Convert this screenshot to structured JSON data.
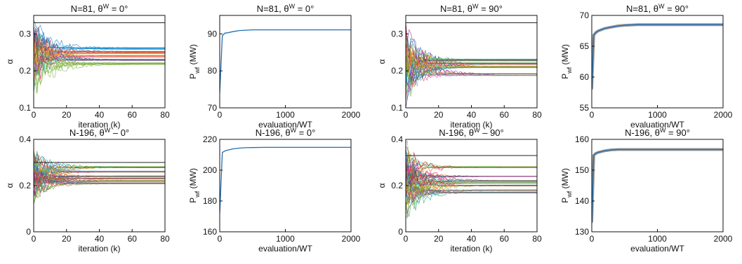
{
  "figure": {
    "rows": 2,
    "cols": 4
  },
  "chart_data": [
    {
      "type": "line",
      "title": "N=81, θ^W = 0°",
      "title_parts": {
        "main": "N=81, θ",
        "sup": "W",
        "tail": " = 0°"
      },
      "xlabel": "iteration (k)",
      "ylabel": "α",
      "ylabel_sub": "",
      "xlim": [
        0,
        80
      ],
      "ylim": [
        0.1,
        0.35
      ],
      "xticks": [
        0,
        20,
        40,
        60,
        80
      ],
      "yticks": [
        0.1,
        0.2,
        0.3
      ],
      "ytick_labels": [
        "0.1",
        "0.2",
        "0.3"
      ],
      "style": "many-traces",
      "upper_bound": 0.33,
      "trace_count": 45,
      "converged_levels": [
        0.26,
        0.25,
        0.24,
        0.23,
        0.22
      ],
      "spread": 0.07
    },
    {
      "type": "line",
      "title": "N=81, θ^W = 0°",
      "title_parts": {
        "main": "N=81, θ",
        "sup": "W",
        "tail": " = 0°"
      },
      "xlabel": "evaluation/WT",
      "ylabel": "P",
      "ylabel_sub": "wf",
      "ylabel_tail": " (MW)",
      "xlim": [
        0,
        2000
      ],
      "ylim": [
        70,
        95
      ],
      "xticks": [
        0,
        1000,
        2000
      ],
      "yticks": [
        70,
        80,
        90
      ],
      "style": "single",
      "series": [
        {
          "x": [
            0,
            40,
            80,
            120,
            200,
            300,
            400,
            500,
            700,
            1000,
            1500,
            2000
          ],
          "y": [
            74,
            89.5,
            90.2,
            90.3,
            90.6,
            90.9,
            91.0,
            91.1,
            91.1,
            91.1,
            91.1,
            91.1
          ]
        }
      ]
    },
    {
      "type": "line",
      "title": "N=81, θ^W = 90°",
      "title_parts": {
        "main": "N=81, θ",
        "sup": "W",
        "tail": " = 90°"
      },
      "xlabel": "iteration (k)",
      "ylabel": "α",
      "ylabel_sub": "",
      "xlim": [
        0,
        80
      ],
      "ylim": [
        0.1,
        0.35
      ],
      "xticks": [
        0,
        20,
        40,
        60,
        80
      ],
      "yticks": [
        0.1,
        0.2,
        0.3
      ],
      "ytick_labels": [
        "0.1",
        "0.2",
        "0.3"
      ],
      "style": "many-traces",
      "upper_bound": 0.33,
      "trace_count": 45,
      "converged_levels": [
        0.23,
        0.22,
        0.21,
        0.19
      ],
      "spread": 0.08
    },
    {
      "type": "line",
      "title": "N=81, θ^W = 90°",
      "title_parts": {
        "main": "N=81, θ",
        "sup": "W",
        "tail": " = 90°"
      },
      "xlabel": "evaluation/WT",
      "ylabel": "P",
      "ylabel_sub": "wf",
      "ylabel_tail": " (MW)",
      "xlim": [
        0,
        2000
      ],
      "ylim": [
        55,
        70
      ],
      "xticks": [
        0,
        1000,
        2000
      ],
      "yticks": [
        55,
        60,
        65,
        70
      ],
      "style": "band",
      "series": [
        {
          "x": [
            0,
            30,
            60,
            100,
            200,
            300,
            400,
            500,
            700,
            1000,
            1500,
            2000
          ],
          "y": [
            58,
            66.8,
            67.2,
            67.5,
            67.9,
            68.1,
            68.3,
            68.4,
            68.5,
            68.5,
            68.5,
            68.5
          ]
        }
      ]
    },
    {
      "type": "line",
      "title": "N-196, θ^W – 0°",
      "title_parts": {
        "main": "N-196, θ",
        "sup": "W",
        "tail": " – 0°"
      },
      "xlabel": "iteration (k)",
      "ylabel": "α",
      "ylabel_sub": "",
      "xlim": [
        0,
        80
      ],
      "ylim": [
        0,
        0.4
      ],
      "xticks": [
        0,
        20,
        40,
        60,
        80
      ],
      "yticks": [
        0,
        0.2,
        0.4
      ],
      "ytick_labels": [
        "0",
        "0.2",
        "0.4"
      ],
      "style": "many-traces",
      "upper_bound": 0.3,
      "trace_count": 60,
      "converged_levels": [
        0.28,
        0.26,
        0.24,
        0.23,
        0.22,
        0.21
      ],
      "spread": 0.07
    },
    {
      "type": "line",
      "title": "N-196, θ^W = 0°",
      "title_parts": {
        "main": "N-196, θ",
        "sup": "W",
        "tail": " = 0°"
      },
      "xlabel": "evaluation/WT",
      "ylabel": "P",
      "ylabel_sub": "wf",
      "ylabel_tail": " (MW)",
      "xlim": [
        0,
        2000
      ],
      "ylim": [
        160,
        220
      ],
      "xticks": [
        0,
        1000,
        2000
      ],
      "yticks": [
        160,
        180,
        200,
        220
      ],
      "style": "single",
      "series": [
        {
          "x": [
            0,
            40,
            80,
            120,
            200,
            300,
            400,
            500,
            700,
            1000,
            1500,
            2000
          ],
          "y": [
            172,
            211.5,
            212.5,
            213.0,
            213.8,
            214.3,
            214.6,
            214.7,
            214.8,
            214.8,
            214.8,
            214.8
          ]
        }
      ]
    },
    {
      "type": "line",
      "title": "N-196, θ^W – 90°",
      "title_parts": {
        "main": "N-196, θ",
        "sup": "W",
        "tail": " – 90°"
      },
      "xlabel": "iteration (k)",
      "ylabel": "α",
      "ylabel_sub": "",
      "xlim": [
        0,
        80
      ],
      "ylim": [
        0,
        0.4
      ],
      "xticks": [
        0,
        20,
        40,
        60,
        80
      ],
      "yticks": [
        0,
        0.2,
        0.4
      ],
      "ytick_labels": [
        "0",
        "0.2",
        "0.4"
      ],
      "style": "many-traces",
      "upper_bound": 0.33,
      "trace_count": 60,
      "converged_levels": [
        0.28,
        0.24,
        0.22,
        0.21,
        0.2,
        0.18,
        0.17
      ],
      "spread": 0.09
    },
    {
      "type": "line",
      "title": "N-196, θ^W = 90°",
      "title_parts": {
        "main": "N-196, θ",
        "sup": "W",
        "tail": " = 90°"
      },
      "xlabel": "evaluation/WT",
      "ylabel": "P",
      "ylabel_sub": "wf",
      "ylabel_tail": " (MW)",
      "xlim": [
        0,
        2000
      ],
      "ylim": [
        130,
        160
      ],
      "xticks": [
        0,
        1000,
        2000
      ],
      "yticks": [
        130,
        140,
        150,
        160
      ],
      "style": "band",
      "series": [
        {
          "x": [
            0,
            30,
            60,
            100,
            200,
            300,
            400,
            500,
            700,
            1000,
            1500,
            2000
          ],
          "y": [
            133,
            154.8,
            155.4,
            155.8,
            156.3,
            156.6,
            156.7,
            156.7,
            156.7,
            156.7,
            156.7,
            156.7
          ]
        }
      ]
    }
  ],
  "colors": {
    "axis": "#111111",
    "power_line": "#1f6fb5",
    "band": "#555555",
    "bound_line": "#222222",
    "palette": [
      "#0072bd",
      "#d95319",
      "#edb120",
      "#7e2f8e",
      "#77ac30",
      "#4dbeee",
      "#a2142f",
      "#e7298a",
      "#1b9e77",
      "#66a61e"
    ]
  }
}
